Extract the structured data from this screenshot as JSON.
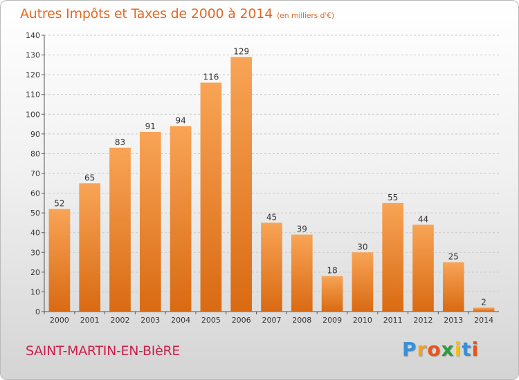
{
  "title": "Autres Impôts et Taxes de 2000 à 2014",
  "subtitle": "(en milliers d'€)",
  "town": "SAINT-MARTIN-EN-BIèRE",
  "logo": {
    "letters": [
      "P",
      "r",
      "o",
      "x",
      "i",
      "t",
      "i"
    ],
    "colors": [
      "#3a8fd6",
      "#f2a21c",
      "#e8541b",
      "#2f9a3e",
      "#f2c01c",
      "#3a8fd6",
      "#e8541b"
    ]
  },
  "chart_data": {
    "type": "bar",
    "categories": [
      "2000",
      "2001",
      "2002",
      "2003",
      "2004",
      "2005",
      "2006",
      "2007",
      "2008",
      "2009",
      "2010",
      "2011",
      "2012",
      "2013",
      "2014"
    ],
    "values": [
      52,
      65,
      83,
      91,
      94,
      116,
      129,
      45,
      39,
      18,
      30,
      55,
      44,
      25,
      2
    ],
    "ylim": [
      0,
      140
    ],
    "yticks": [
      0,
      10,
      20,
      30,
      40,
      50,
      60,
      70,
      80,
      90,
      100,
      110,
      120,
      130,
      140
    ],
    "grid": true,
    "bar_color": "#f0892e"
  }
}
